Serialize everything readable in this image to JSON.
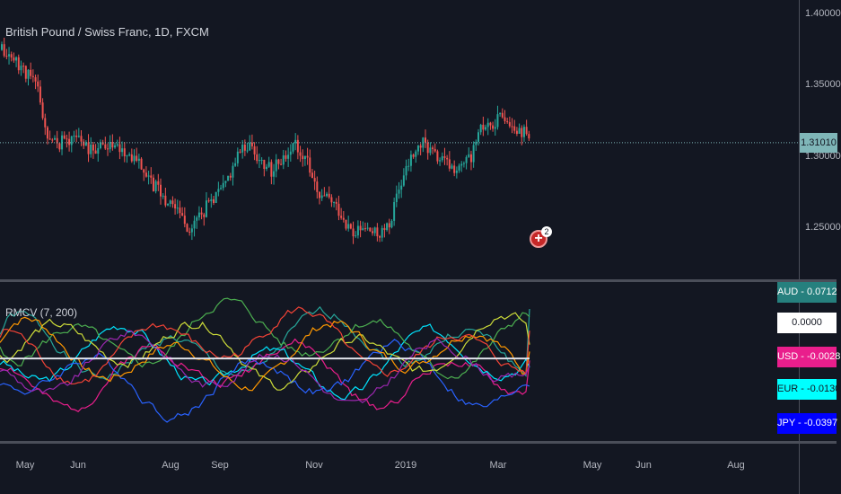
{
  "main_title": "British Pound / Swiss Franc, 1D, FXCM",
  "indicator_title": "RMCV (7, 200)",
  "price_ticks": [
    "1.40000",
    "1.35000",
    "1.30000",
    "1.25000"
  ],
  "last_price_label": "1.31010",
  "event_badge": {
    "symbol": "+",
    "count": "2"
  },
  "time_labels": [
    "May",
    "Jun",
    "Aug",
    "Sep",
    "Nov",
    "2019",
    "Mar",
    "May",
    "Jun",
    "Aug"
  ],
  "tags": [
    {
      "text": "AUD - 0.0712",
      "bg": "#26807e",
      "fg": "#ffffff"
    },
    {
      "text": "0.0000",
      "bg": "#ffffff",
      "fg": "#131722"
    },
    {
      "text": "USD - -0.0028",
      "bg": "#e91e8c",
      "fg": "#ffffff"
    },
    {
      "text": "EUR - -0.0130",
      "bg": "#00ffff",
      "fg": "#131722"
    },
    {
      "text": "JPY - -0.0397",
      "bg": "#0000ff",
      "fg": "#ffffff"
    }
  ],
  "colors": {
    "up": "#26a69a",
    "down": "#ef5350",
    "last_price_line": "#7fb6b8",
    "zero_line": "#e0e3eb"
  },
  "chart_data": [
    {
      "type": "candlestick",
      "title": "British Pound / Swiss Franc, 1D, FXCM",
      "ylim": [
        1.215,
        1.41
      ],
      "last_price": 1.3101,
      "price_path": [
        [
          0,
          1.375
        ],
        [
          0.03,
          1.365
        ],
        [
          0.06,
          1.35
        ],
        [
          0.08,
          1.31
        ],
        [
          0.1,
          1.31
        ],
        [
          0.13,
          1.315
        ],
        [
          0.15,
          1.305
        ],
        [
          0.18,
          1.31
        ],
        [
          0.2,
          1.305
        ],
        [
          0.23,
          1.3
        ],
        [
          0.26,
          1.28
        ],
        [
          0.28,
          1.27
        ],
        [
          0.3,
          1.265
        ],
        [
          0.32,
          1.25
        ],
        [
          0.34,
          1.26
        ],
        [
          0.36,
          1.27
        ],
        [
          0.38,
          1.28
        ],
        [
          0.4,
          1.3
        ],
        [
          0.42,
          1.31
        ],
        [
          0.44,
          1.3
        ],
        [
          0.46,
          1.29
        ],
        [
          0.48,
          1.3
        ],
        [
          0.5,
          1.31
        ],
        [
          0.52,
          1.3
        ],
        [
          0.54,
          1.27
        ],
        [
          0.56,
          1.27
        ],
        [
          0.58,
          1.26
        ],
        [
          0.6,
          1.245
        ],
        [
          0.62,
          1.25
        ],
        [
          0.64,
          1.245
        ],
        [
          0.66,
          1.25
        ],
        [
          0.68,
          1.28
        ],
        [
          0.7,
          1.3
        ],
        [
          0.72,
          1.31
        ],
        [
          0.74,
          1.3
        ],
        [
          0.76,
          1.295
        ],
        [
          0.78,
          1.29
        ],
        [
          0.8,
          1.3
        ],
        [
          0.82,
          1.32
        ],
        [
          0.84,
          1.325
        ],
        [
          0.86,
          1.33
        ],
        [
          0.88,
          1.32
        ],
        [
          0.9,
          1.315
        ]
      ]
    },
    {
      "type": "line",
      "title": "RMCV (7, 200)",
      "ylim": [
        -0.12,
        0.11
      ],
      "zero": 0,
      "series": [
        {
          "name": "AUD",
          "color": "#26a69a",
          "seed": 1,
          "offset": 0.015,
          "last": 0.0712
        },
        {
          "name": "USD",
          "color": "#e91e8c",
          "seed": 2,
          "offset": -0.02,
          "last": -0.0028
        },
        {
          "name": "EUR",
          "color": "#00e5ff",
          "seed": 3,
          "offset": -0.005,
          "last": -0.013
        },
        {
          "name": "JPY",
          "color": "#2962ff",
          "seed": 4,
          "offset": -0.03,
          "last": -0.0397
        },
        {
          "name": "",
          "color": "#4caf50",
          "seed": 5,
          "offset": 0.03,
          "last": 0.06
        },
        {
          "name": "",
          "color": "#cddc39",
          "seed": 6,
          "offset": 0.01,
          "last": 0.02
        },
        {
          "name": "",
          "color": "#ff9800",
          "seed": 7,
          "offset": 0.005,
          "last": 0.01
        },
        {
          "name": "",
          "color": "#f44336",
          "seed": 8,
          "offset": 0.02,
          "last": 0.04
        },
        {
          "name": "",
          "color": "#9c27b0",
          "seed": 9,
          "offset": -0.015,
          "last": -0.01
        }
      ]
    }
  ]
}
